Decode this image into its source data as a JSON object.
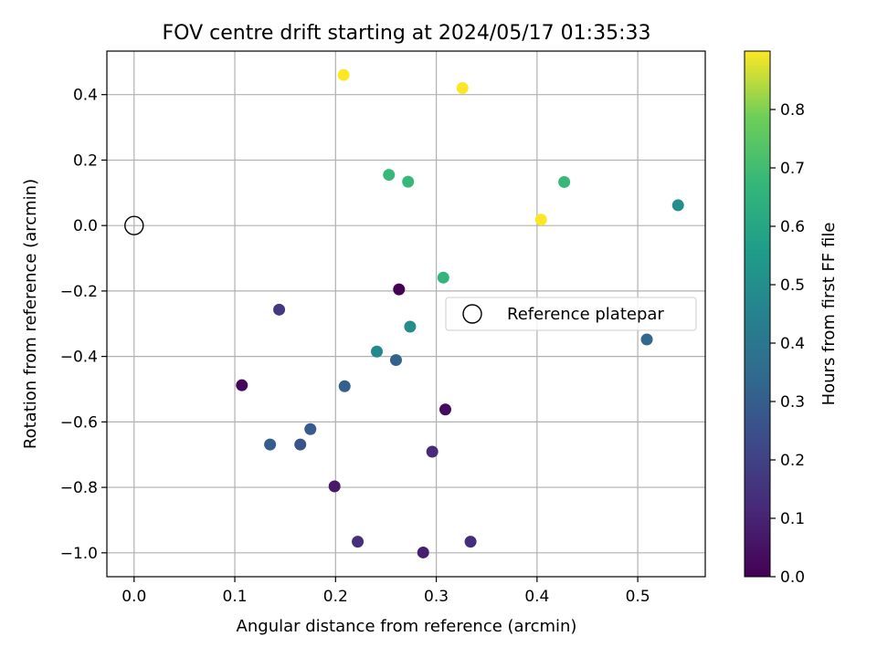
{
  "chart_data": {
    "type": "scatter",
    "title": "FOV centre drift starting at 2024/05/17 01:35:33",
    "xlabel": "Angular distance from reference (arcmin)",
    "ylabel": "Rotation from reference (arcmin)",
    "xlim": [
      -0.027,
      0.567
    ],
    "ylim": [
      -1.073,
      0.533
    ],
    "xticks": [
      0.0,
      0.1,
      0.2,
      0.3,
      0.4,
      0.5
    ],
    "xtick_labels": [
      "0.0",
      "0.1",
      "0.2",
      "0.3",
      "0.4",
      "0.5"
    ],
    "yticks": [
      0.4,
      0.2,
      0.0,
      -0.2,
      -0.4,
      -0.6,
      -0.8,
      -1.0
    ],
    "ytick_labels": [
      "0.4",
      "0.2",
      "0.0",
      "−0.2",
      "−0.4",
      "−0.6",
      "−0.8",
      "−1.0"
    ],
    "grid": true,
    "legend": {
      "placement": "center-right",
      "entries": [
        "Reference platepar"
      ]
    },
    "reference_point": {
      "x": 0.0,
      "y": 0.0,
      "label": "Reference platepar",
      "marker": "open-circle"
    },
    "colorbar": {
      "label": "Hours from first FF file",
      "colormap": "viridis",
      "range": [
        0.0,
        0.9
      ],
      "ticks": [
        0.0,
        0.1,
        0.2,
        0.3,
        0.4,
        0.5,
        0.6,
        0.7,
        0.8
      ],
      "tick_labels": [
        "0.0",
        "0.1",
        "0.2",
        "0.3",
        "0.4",
        "0.5",
        "0.6",
        "0.7",
        "0.8"
      ]
    },
    "points": [
      {
        "x": 0.263,
        "y": -0.195,
        "hours": 0.0
      },
      {
        "x": 0.107,
        "y": -0.488,
        "hours": 0.02
      },
      {
        "x": 0.309,
        "y": -0.562,
        "hours": 0.03
      },
      {
        "x": 0.199,
        "y": -0.797,
        "hours": 0.07
      },
      {
        "x": 0.287,
        "y": -0.999,
        "hours": 0.09
      },
      {
        "x": 0.296,
        "y": -0.691,
        "hours": 0.12
      },
      {
        "x": 0.334,
        "y": -0.966,
        "hours": 0.13
      },
      {
        "x": 0.222,
        "y": -0.966,
        "hours": 0.14
      },
      {
        "x": 0.144,
        "y": -0.257,
        "hours": 0.17
      },
      {
        "x": 0.165,
        "y": -0.669,
        "hours": 0.26
      },
      {
        "x": 0.175,
        "y": -0.622,
        "hours": 0.29
      },
      {
        "x": 0.135,
        "y": -0.669,
        "hours": 0.3
      },
      {
        "x": 0.209,
        "y": -0.491,
        "hours": 0.31
      },
      {
        "x": 0.26,
        "y": -0.411,
        "hours": 0.32
      },
      {
        "x": 0.509,
        "y": -0.348,
        "hours": 0.34
      },
      {
        "x": 0.241,
        "y": -0.385,
        "hours": 0.48
      },
      {
        "x": 0.274,
        "y": -0.309,
        "hours": 0.5
      },
      {
        "x": 0.54,
        "y": 0.062,
        "hours": 0.5
      },
      {
        "x": 0.307,
        "y": -0.159,
        "hours": 0.66
      },
      {
        "x": 0.253,
        "y": 0.155,
        "hours": 0.68
      },
      {
        "x": 0.272,
        "y": 0.134,
        "hours": 0.68
      },
      {
        "x": 0.427,
        "y": 0.133,
        "hours": 0.68
      },
      {
        "x": 0.404,
        "y": 0.018,
        "hours": 0.9
      },
      {
        "x": 0.208,
        "y": 0.46,
        "hours": 0.9
      },
      {
        "x": 0.326,
        "y": 0.42,
        "hours": 0.9
      }
    ]
  }
}
